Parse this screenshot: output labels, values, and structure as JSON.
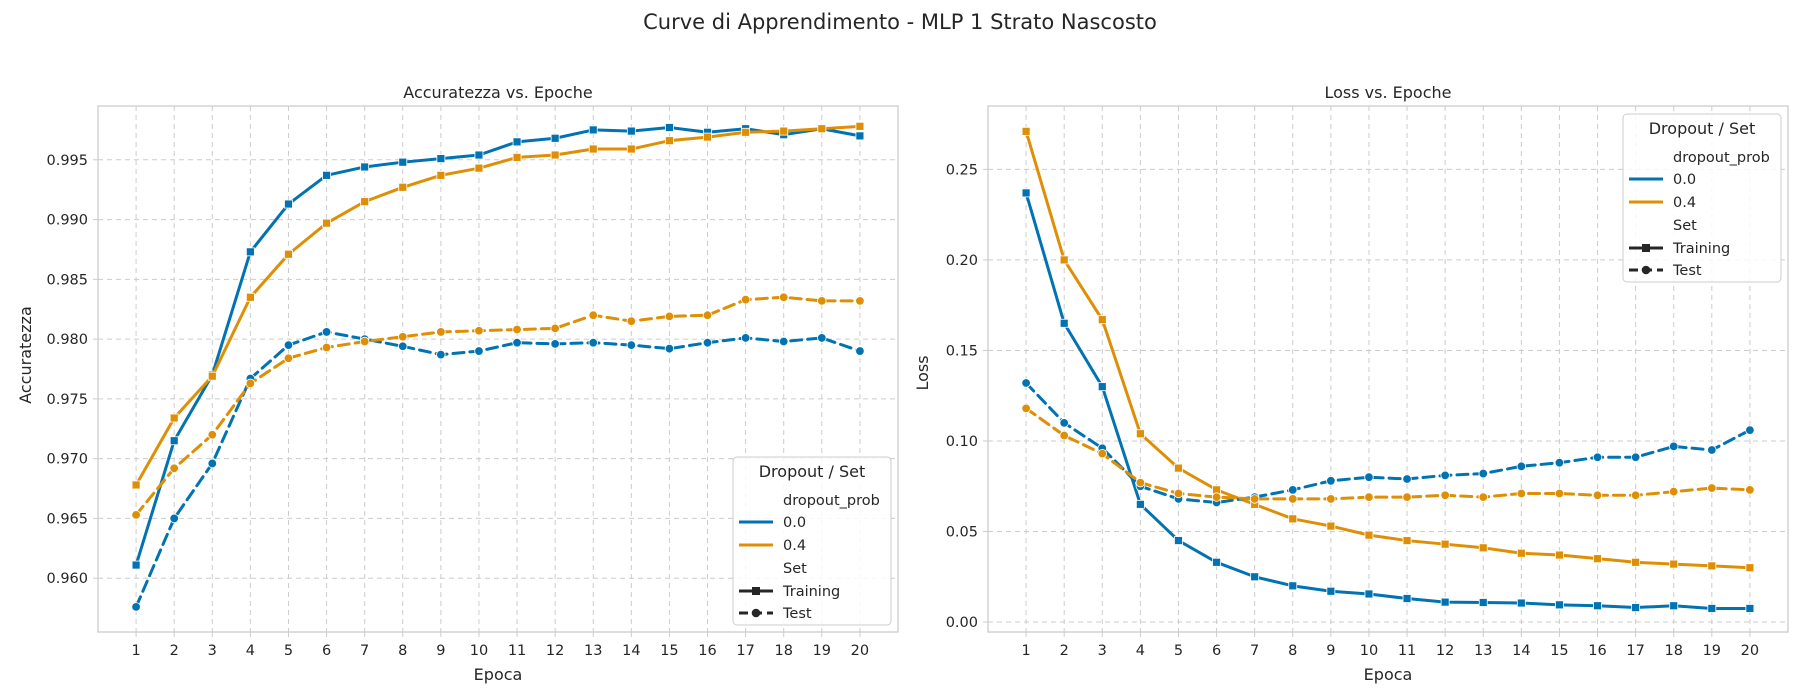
{
  "figure": {
    "suptitle": "Curve di Apprendimento - MLP 1 Strato Nascosto"
  },
  "colors": {
    "dropout_0.0": "#0173b2",
    "dropout_0.4": "#de8f05",
    "grid": "#cccccc",
    "frame": "#cccccc",
    "text": "#262626"
  },
  "legend": {
    "title": "Dropout / Set",
    "hue_header": "dropout_prob",
    "hue_items": [
      "0.0",
      "0.4"
    ],
    "style_header": "Set",
    "style_items": [
      "Training",
      "Test"
    ]
  },
  "chart_data": [
    {
      "type": "line",
      "title": "Accuratezza vs. Epoche",
      "xlabel": "Epoca",
      "ylabel": "Accuratezza",
      "x": [
        1,
        2,
        3,
        4,
        5,
        6,
        7,
        8,
        9,
        10,
        11,
        12,
        13,
        14,
        15,
        16,
        17,
        18,
        19,
        20
      ],
      "xlim": [
        0,
        21
      ],
      "ylim": [
        0.9555,
        0.9995
      ],
      "yticks": [
        0.96,
        0.965,
        0.97,
        0.975,
        0.98,
        0.985,
        0.99,
        0.995
      ],
      "ytick_labels": [
        "0.960",
        "0.965",
        "0.970",
        "0.975",
        "0.980",
        "0.985",
        "0.990",
        "0.995"
      ],
      "grid": true,
      "legend_position": "lower-right",
      "series": [
        {
          "dropout": "0.0",
          "set": "Training",
          "marker": "square",
          "dash": "solid",
          "values": [
            0.9611,
            0.9715,
            0.977,
            0.9873,
            0.9913,
            0.9937,
            0.9944,
            0.9948,
            0.9951,
            0.9954,
            0.9965,
            0.9968,
            0.9975,
            0.9974,
            0.9977,
            0.9973,
            0.9976,
            0.9971,
            0.9976,
            0.997
          ]
        },
        {
          "dropout": "0.4",
          "set": "Training",
          "marker": "square",
          "dash": "solid",
          "values": [
            0.9678,
            0.9734,
            0.9769,
            0.9835,
            0.9871,
            0.9897,
            0.9915,
            0.9927,
            0.9937,
            0.9943,
            0.9952,
            0.9954,
            0.9959,
            0.9959,
            0.9966,
            0.9969,
            0.9973,
            0.9974,
            0.9976,
            0.9978
          ]
        },
        {
          "dropout": "0.0",
          "set": "Test",
          "marker": "circle",
          "dash": "dashed",
          "values": [
            0.9576,
            0.965,
            0.9696,
            0.9767,
            0.9795,
            0.9806,
            0.98,
            0.9794,
            0.9787,
            0.979,
            0.9797,
            0.9796,
            0.9797,
            0.9795,
            0.9792,
            0.9797,
            0.9801,
            0.9798,
            0.9801,
            0.979
          ]
        },
        {
          "dropout": "0.4",
          "set": "Test",
          "marker": "circle",
          "dash": "dashed",
          "values": [
            0.9653,
            0.9692,
            0.972,
            0.9763,
            0.9784,
            0.9793,
            0.9798,
            0.9802,
            0.9806,
            0.9807,
            0.9808,
            0.9809,
            0.982,
            0.9815,
            0.9819,
            0.982,
            0.9833,
            0.9835,
            0.9832,
            0.9832
          ]
        }
      ]
    },
    {
      "type": "line",
      "title": "Loss vs. Epoche",
      "xlabel": "Epoca",
      "ylabel": "Loss",
      "x": [
        1,
        2,
        3,
        4,
        5,
        6,
        7,
        8,
        9,
        10,
        11,
        12,
        13,
        14,
        15,
        16,
        17,
        18,
        19,
        20
      ],
      "xlim": [
        0,
        21
      ],
      "ylim": [
        -0.0055,
        0.285
      ],
      "yticks": [
        0.0,
        0.05,
        0.1,
        0.15,
        0.2,
        0.25
      ],
      "ytick_labels": [
        "0.00",
        "0.05",
        "0.10",
        "0.15",
        "0.20",
        "0.25"
      ],
      "grid": true,
      "legend_position": "upper-right",
      "series": [
        {
          "dropout": "0.0",
          "set": "Training",
          "marker": "square",
          "dash": "solid",
          "values": [
            0.237,
            0.165,
            0.13,
            0.065,
            0.045,
            0.033,
            0.025,
            0.02,
            0.017,
            0.0155,
            0.013,
            0.011,
            0.0108,
            0.0105,
            0.0095,
            0.009,
            0.008,
            0.009,
            0.0075,
            0.0075
          ]
        },
        {
          "dropout": "0.4",
          "set": "Training",
          "marker": "square",
          "dash": "solid",
          "values": [
            0.271,
            0.2,
            0.167,
            0.104,
            0.085,
            0.073,
            0.065,
            0.057,
            0.053,
            0.048,
            0.045,
            0.043,
            0.041,
            0.038,
            0.037,
            0.035,
            0.033,
            0.032,
            0.031,
            0.03
          ]
        },
        {
          "dropout": "0.0",
          "set": "Test",
          "marker": "circle",
          "dash": "dashed",
          "values": [
            0.132,
            0.11,
            0.096,
            0.075,
            0.068,
            0.066,
            0.069,
            0.073,
            0.078,
            0.08,
            0.079,
            0.081,
            0.082,
            0.086,
            0.088,
            0.091,
            0.091,
            0.097,
            0.095,
            0.106
          ]
        },
        {
          "dropout": "0.4",
          "set": "Test",
          "marker": "circle",
          "dash": "dashed",
          "values": [
            0.118,
            0.103,
            0.093,
            0.077,
            0.071,
            0.069,
            0.068,
            0.068,
            0.068,
            0.069,
            0.069,
            0.07,
            0.069,
            0.071,
            0.071,
            0.07,
            0.07,
            0.072,
            0.074,
            0.073
          ]
        }
      ]
    }
  ]
}
